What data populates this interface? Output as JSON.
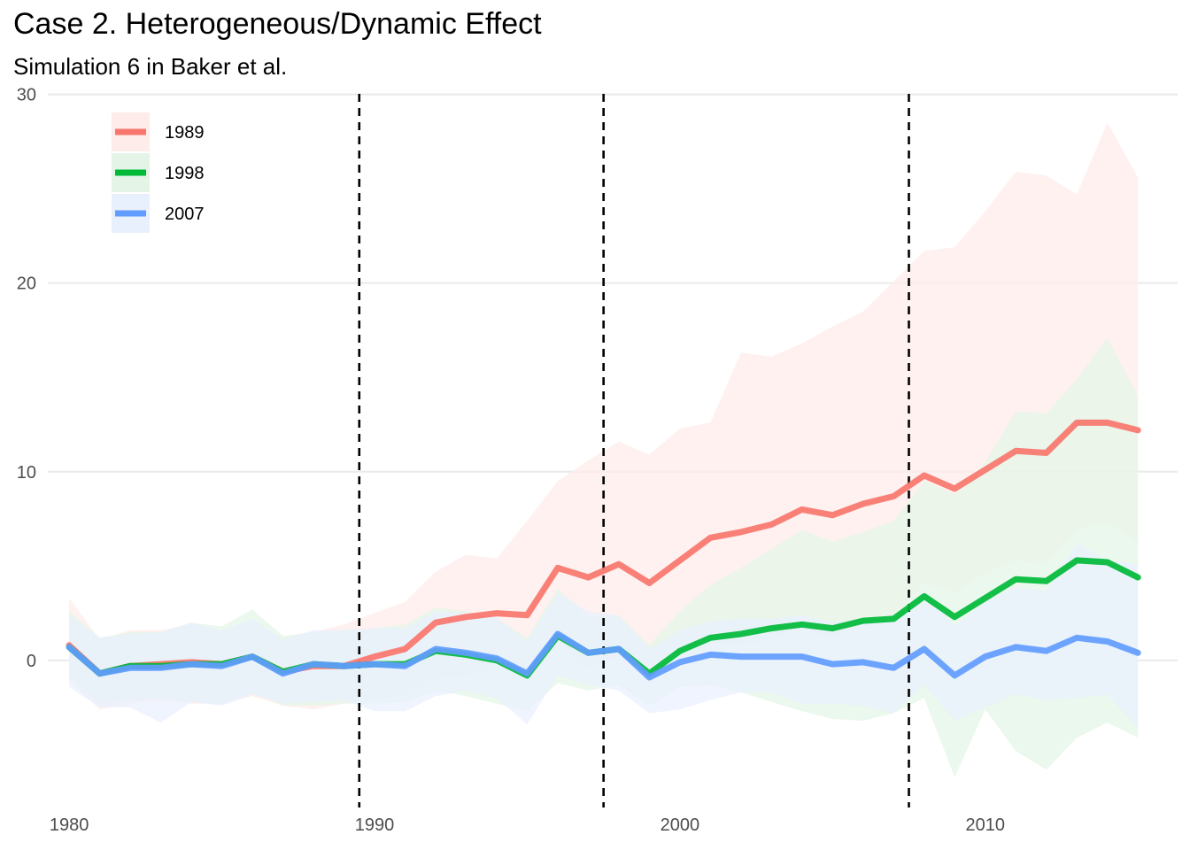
{
  "chart_data": {
    "type": "line",
    "title": "Case 2. Heterogeneous/Dynamic Effect",
    "subtitle": "Simulation 6 in Baker et al.",
    "xlabel": "",
    "ylabel": "",
    "x": [
      1980,
      1981,
      1982,
      1983,
      1984,
      1985,
      1986,
      1987,
      1988,
      1989,
      1990,
      1991,
      1992,
      1993,
      1994,
      1995,
      1996,
      1997,
      1998,
      1999,
      2000,
      2001,
      2002,
      2003,
      2004,
      2005,
      2006,
      2007,
      2008,
      2009,
      2010,
      2011,
      2012,
      2013,
      2014,
      2015
    ],
    "xlim": [
      1979.3,
      2016.3
    ],
    "ylim": [
      -7.8,
      30.5
    ],
    "xticks": [
      1980,
      1990,
      2000,
      2010
    ],
    "yticks": [
      0,
      10,
      20,
      30
    ],
    "grid": "horizontal",
    "legend_position": "top-left",
    "vlines": [
      1989.5,
      1997.5,
      2007.5
    ],
    "series": [
      {
        "name": "1989",
        "color": "#F8766D",
        "band_color": "#FDECEA",
        "values": [
          0.8,
          -0.7,
          -0.3,
          -0.2,
          -0.1,
          -0.2,
          0.2,
          -0.6,
          -0.3,
          -0.3,
          0.2,
          0.6,
          2.0,
          2.3,
          2.5,
          2.4,
          4.9,
          4.4,
          5.1,
          4.1,
          5.3,
          6.5,
          6.8,
          7.2,
          8.0,
          7.7,
          8.3,
          8.7,
          9.8,
          9.1,
          10.1,
          11.1,
          11.0,
          12.6,
          12.6,
          12.2
        ],
        "upper": [
          3.3,
          1.1,
          1.6,
          1.6,
          1.9,
          1.6,
          2.1,
          1.2,
          1.5,
          1.9,
          2.5,
          3.1,
          4.7,
          5.6,
          5.4,
          7.4,
          9.5,
          10.6,
          11.6,
          10.9,
          12.3,
          12.6,
          16.3,
          16.1,
          16.8,
          17.7,
          18.5,
          20.1,
          21.7,
          21.9,
          23.8,
          25.9,
          25.7,
          24.7,
          28.5,
          25.6
        ],
        "lower": [
          -1.0,
          -2.6,
          -2.3,
          -2.1,
          -2.3,
          -2.3,
          -1.9,
          -2.4,
          -2.6,
          -2.3,
          -2.1,
          -1.8,
          -0.9,
          -0.9,
          -0.2,
          -1.3,
          1.0,
          -0.4,
          0.2,
          -1.0,
          0.0,
          0.8,
          0.8,
          1.1,
          1.6,
          1.2,
          1.8,
          2.3,
          4.1,
          3.6,
          4.6,
          5.3,
          5.1,
          6.9,
          7.3,
          6.3
        ]
      },
      {
        "name": "1998",
        "color": "#00BA38",
        "band_color": "#E4F5E8",
        "values": [
          0.7,
          -0.7,
          -0.3,
          -0.3,
          -0.2,
          -0.2,
          0.2,
          -0.6,
          -0.2,
          -0.3,
          -0.2,
          -0.2,
          0.5,
          0.3,
          0.0,
          -0.8,
          1.3,
          0.4,
          0.6,
          -0.7,
          0.5,
          1.2,
          1.4,
          1.7,
          1.9,
          1.7,
          2.1,
          2.2,
          3.4,
          2.3,
          3.3,
          4.3,
          4.2,
          5.3,
          5.2,
          4.4
        ],
        "upper": [
          2.6,
          1.2,
          1.5,
          1.5,
          2.0,
          1.8,
          2.7,
          1.3,
          1.5,
          1.6,
          1.7,
          1.9,
          2.8,
          2.6,
          2.2,
          1.2,
          3.8,
          2.3,
          2.4,
          0.8,
          2.6,
          4.0,
          4.9,
          5.9,
          6.9,
          6.3,
          6.8,
          7.4,
          9.5,
          8.8,
          10.5,
          13.2,
          13.1,
          14.9,
          17.1,
          14.0
        ],
        "lower": [
          -0.9,
          -2.3,
          -2.1,
          -2.0,
          -2.2,
          -2.3,
          -1.7,
          -2.4,
          -2.4,
          -2.3,
          -2.3,
          -2.2,
          -1.6,
          -1.9,
          -2.3,
          -2.7,
          -1.2,
          -1.6,
          -1.3,
          -2.4,
          -1.4,
          -1.3,
          -1.7,
          -2.2,
          -2.7,
          -3.1,
          -3.2,
          -2.8,
          -2.0,
          -6.2,
          -2.6,
          -4.8,
          -5.8,
          -4.1,
          -3.3,
          -4.1
        ]
      },
      {
        "name": "2007",
        "color": "#619CFF",
        "band_color": "#E9F0FD",
        "values": [
          0.7,
          -0.7,
          -0.4,
          -0.4,
          -0.2,
          -0.3,
          0.2,
          -0.7,
          -0.2,
          -0.3,
          -0.2,
          -0.3,
          0.6,
          0.4,
          0.1,
          -0.7,
          1.4,
          0.4,
          0.6,
          -0.9,
          -0.1,
          0.3,
          0.2,
          0.2,
          0.2,
          -0.2,
          -0.1,
          -0.4,
          0.6,
          -0.8,
          0.2,
          0.7,
          0.5,
          1.2,
          1.0,
          0.4
        ],
        "upper": [
          2.4,
          1.2,
          1.4,
          1.5,
          2.0,
          1.6,
          2.2,
          1.1,
          1.6,
          1.6,
          1.7,
          1.7,
          2.6,
          2.5,
          2.3,
          1.0,
          3.6,
          2.6,
          2.4,
          0.6,
          1.6,
          2.1,
          2.2,
          2.2,
          2.4,
          2.0,
          2.2,
          2.1,
          3.7,
          1.8,
          3.1,
          3.9,
          3.7,
          6.2,
          5.3,
          5.1
        ],
        "lower": [
          -1.4,
          -2.5,
          -2.5,
          -3.3,
          -2.2,
          -2.4,
          -1.8,
          -2.3,
          -2.2,
          -2.1,
          -2.7,
          -2.7,
          -1.9,
          -1.6,
          -2.0,
          -3.4,
          -0.8,
          -1.3,
          -1.6,
          -2.8,
          -2.6,
          -2.1,
          -1.7,
          -1.7,
          -2.3,
          -2.3,
          -2.4,
          -2.8,
          -1.3,
          -3.2,
          -2.5,
          -1.8,
          -2.1,
          -2.0,
          -1.8,
          -3.6
        ]
      }
    ]
  }
}
